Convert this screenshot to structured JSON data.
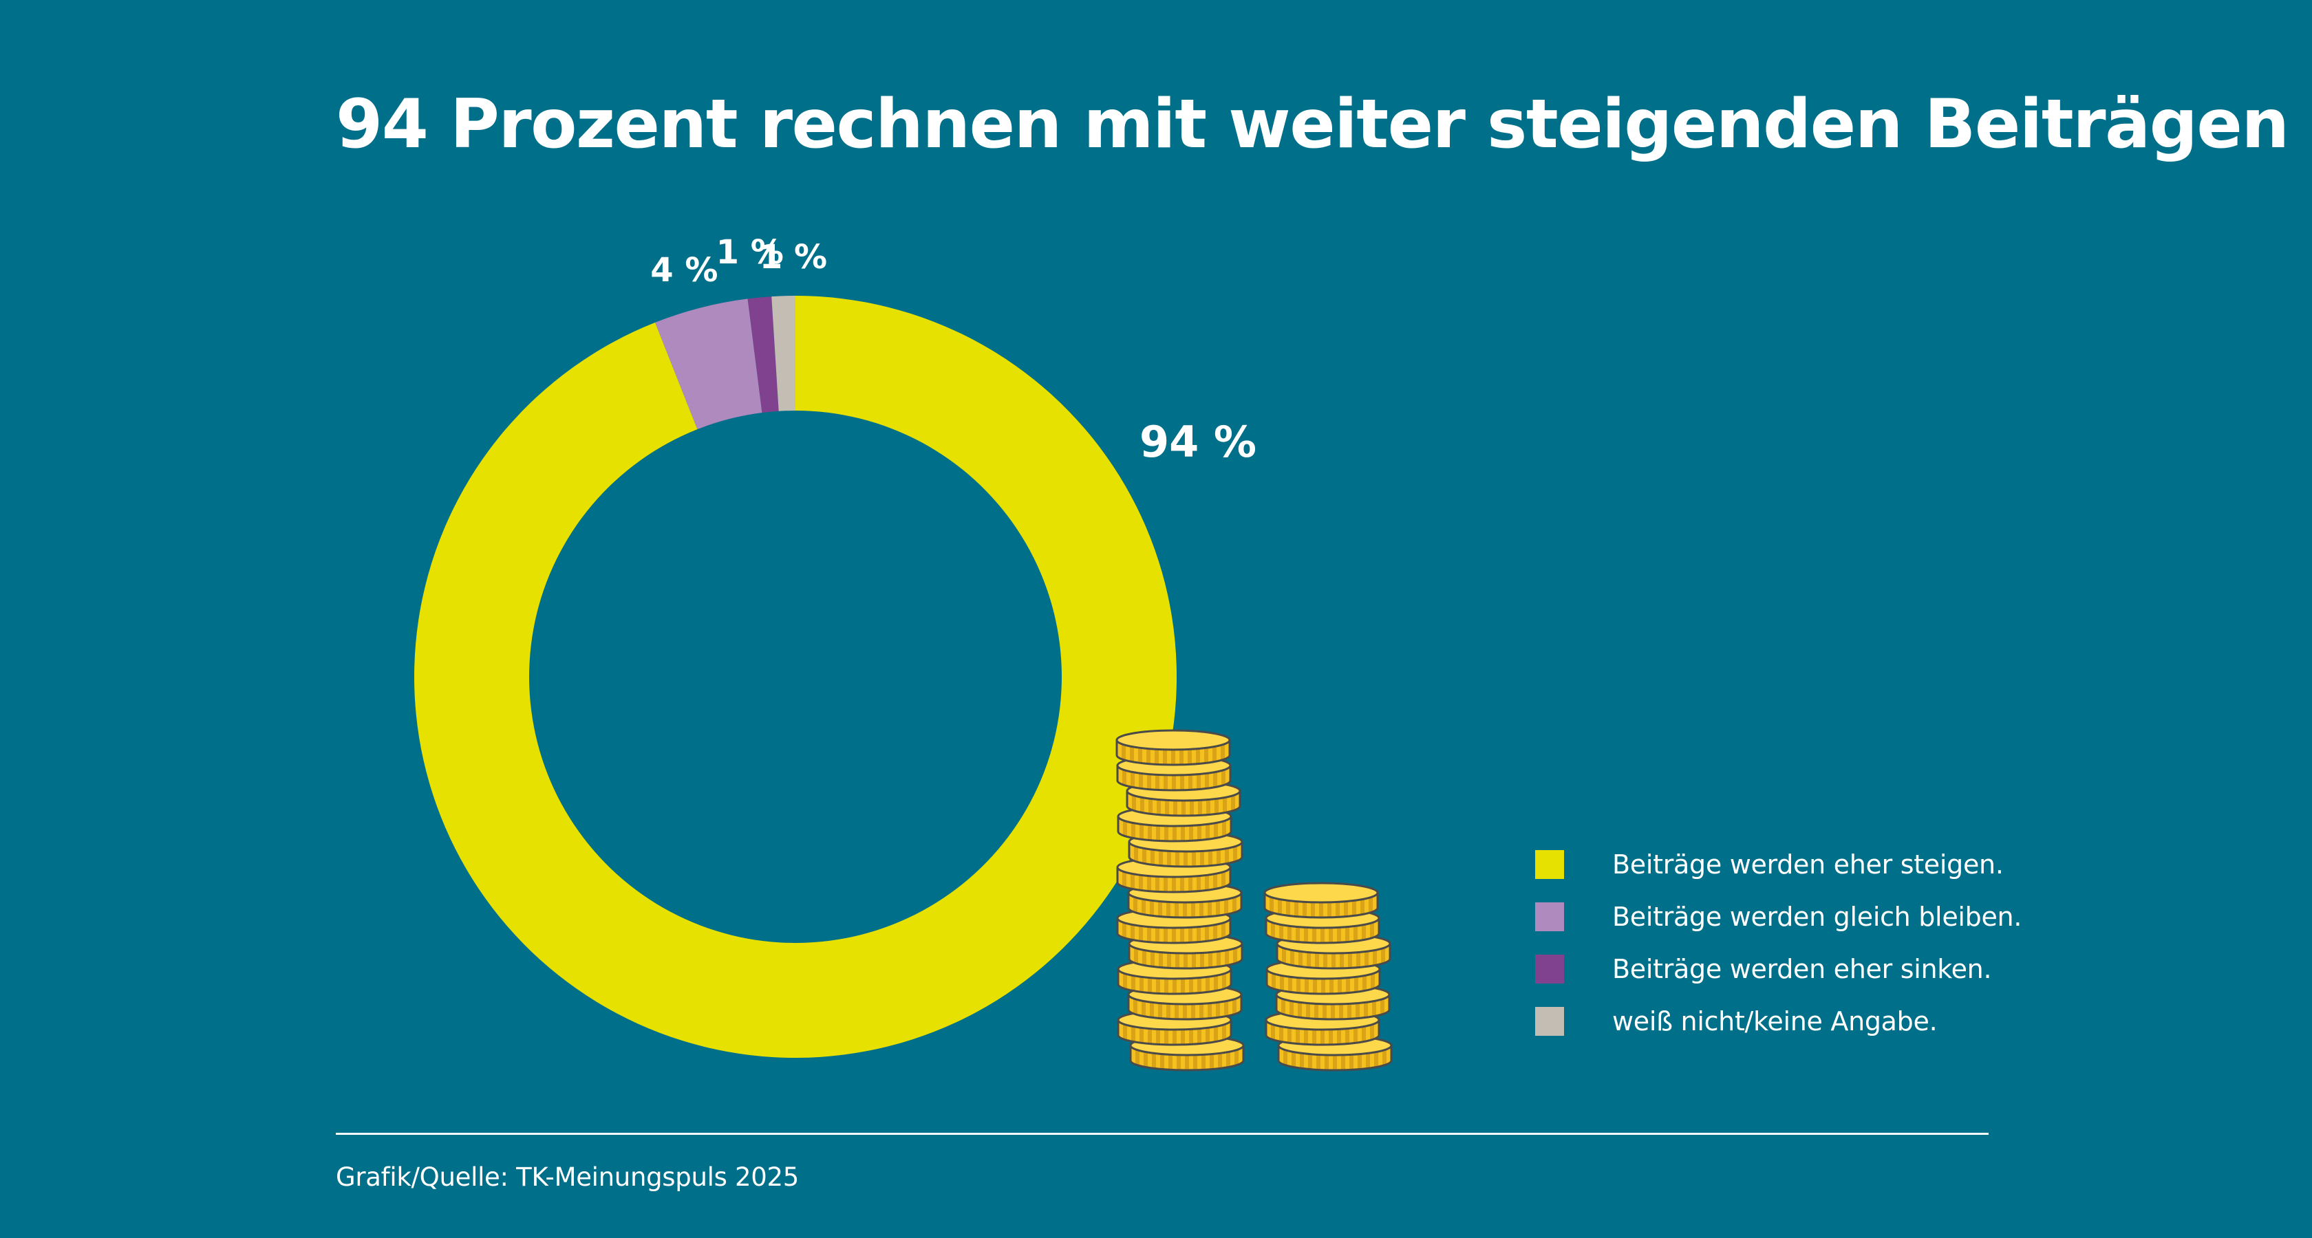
{
  "title": "94 Prozent rechnen mit weiter steigenden Beiträgen",
  "source": "Grafik/Quelle: TK-Meinungspuls 2025",
  "background_color": "#006F89",
  "chart_data": {
    "type": "pie",
    "variant": "donut",
    "title": "94 Prozent rechnen mit weiter steigenden Beiträgen",
    "unit": "%",
    "start": "12 o'clock, clockwise",
    "categories": [
      "Beiträge werden eher steigen.",
      "Beiträge werden gleich bleiben.",
      "Beiträge werden eher sinken.",
      "weiß nicht/keine Angabe."
    ],
    "values": [
      94,
      4,
      1,
      1
    ],
    "data_labels": [
      "94 %",
      "4 %",
      "1 %",
      "1 %"
    ],
    "colors": [
      "#E6E100",
      "#AF8ABE",
      "#80418E",
      "#C4BDB3"
    ],
    "legend_placement": "bottom-right"
  },
  "legend": {
    "items": [
      {
        "label": "Beiträge werden eher steigen.",
        "color": "#E6E100"
      },
      {
        "label": "Beiträge werden gleich bleiben.",
        "color": "#AF8ABE"
      },
      {
        "label": "Beiträge werden eher sinken.",
        "color": "#80418E"
      },
      {
        "label": "weiß nicht/keine Angabe.",
        "color": "#C4BDB3"
      }
    ]
  },
  "decoration": {
    "icon": "coin-stacks-icon",
    "coin_colors": {
      "top": "#FDD84A",
      "side": "#F4C11E",
      "stripe": "#D9A318",
      "outline": "#4A4A4A"
    }
  }
}
